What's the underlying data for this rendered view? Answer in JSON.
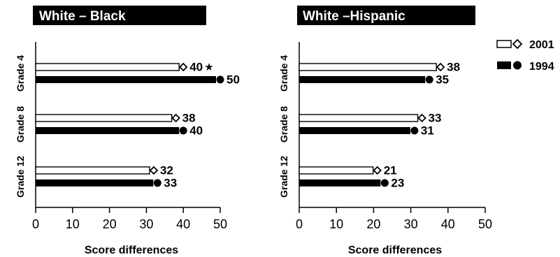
{
  "chart_data": [
    {
      "type": "bar",
      "title": "White – Black",
      "xlabel": "Score differences",
      "ylabel": "",
      "xlim": [
        0,
        50
      ],
      "xticks": [
        0,
        10,
        20,
        30,
        40,
        50
      ],
      "categories": [
        "Grade 4",
        "Grade 8",
        "Grade 12"
      ],
      "series": [
        {
          "name": "2001",
          "values": [
            40,
            38,
            32
          ],
          "labels": [
            "40",
            "38",
            "32"
          ],
          "marker": "open-diamond",
          "color": "#ffffff",
          "significant": [
            true,
            false,
            false
          ]
        },
        {
          "name": "1994",
          "values": [
            50,
            40,
            33
          ],
          "labels": [
            "50",
            "40",
            "33"
          ],
          "marker": "filled-circle",
          "color": "#000000"
        }
      ]
    },
    {
      "type": "bar",
      "title": "White –Hispanic",
      "xlabel": "Score differences",
      "ylabel": "",
      "xlim": [
        0,
        50
      ],
      "xticks": [
        0,
        10,
        20,
        30,
        40,
        50
      ],
      "categories": [
        "Grade 4",
        "Grade 8",
        "Grade 12"
      ],
      "series": [
        {
          "name": "2001",
          "values": [
            38,
            33,
            21
          ],
          "labels": [
            "38",
            "33",
            "21"
          ],
          "marker": "open-diamond",
          "color": "#ffffff"
        },
        {
          "name": "1994",
          "values": [
            35,
            31,
            23
          ],
          "labels": [
            "35",
            "31",
            "23"
          ],
          "marker": "filled-circle",
          "color": "#000000"
        }
      ]
    }
  ],
  "legend": {
    "placement": "top-right",
    "items": [
      {
        "label": "2001",
        "marker": "open-diamond"
      },
      {
        "label": "1994",
        "marker": "filled-circle"
      }
    ]
  },
  "significance_marker": "★"
}
